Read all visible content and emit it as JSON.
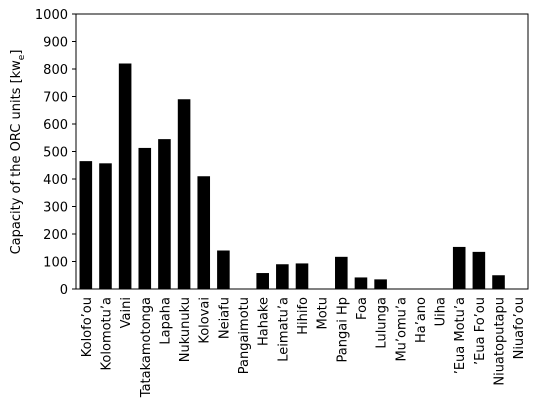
{
  "chart_data": {
    "type": "bar",
    "y_label": [
      "Capacity of the ORC units [kw",
      "e",
      "]"
    ],
    "categories": [
      "Kolofo’ou",
      "Kolomotu’a",
      "Vaini",
      "Tatakamotonga",
      "Lapaha",
      "Nukunuku",
      "Kolovai",
      "Neiafu",
      "Pangaimotu",
      "Hahake",
      "Leimatu’a",
      "Hihifo",
      "Motu",
      "Pangai Hp",
      "Foa",
      "Lulunga",
      "Mu’omu’a",
      "Ha’ano",
      "Uiha",
      "’Eua Motu’a",
      "’Eua Fo’ou",
      "Niuatoputapu",
      "Niuafo’ou"
    ],
    "values": [
      465,
      457,
      820,
      513,
      545,
      690,
      410,
      140,
      0,
      58,
      90,
      93,
      0,
      117,
      42,
      35,
      0,
      0,
      0,
      153,
      135,
      50,
      0
    ],
    "color": "#000000",
    "ylim": [
      0,
      1000
    ],
    "yticks": [
      0,
      100,
      200,
      300,
      400,
      500,
      600,
      700,
      800,
      900,
      1000
    ]
  }
}
